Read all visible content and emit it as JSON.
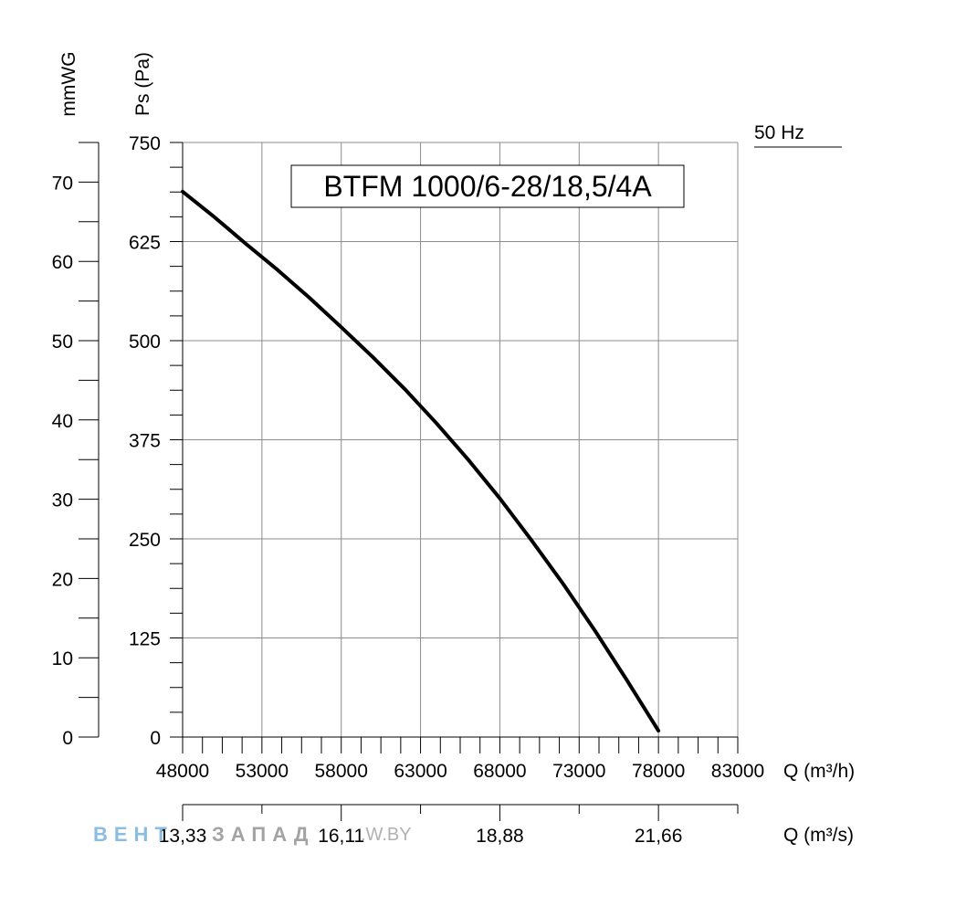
{
  "chart_data": {
    "type": "line",
    "title": "BTFM 1000/6-28/18,5/4A",
    "frequency_label": "50 Hz",
    "ylabel_left": "mmWG",
    "ylabel_right": "Ps (Pa)",
    "xlabel_primary": "Q (m³/h)",
    "xlabel_secondary": "Q (m³/s)",
    "xlim": [
      48000,
      83000
    ],
    "ylim": [
      0,
      750
    ],
    "ylim_mmwg": [
      0,
      75
    ],
    "x_ticks": [
      48000,
      53000,
      58000,
      63000,
      68000,
      73000,
      78000,
      83000
    ],
    "x_tick_labels": [
      "48000",
      "53000",
      "58000",
      "63000",
      "68000",
      "73000",
      "78000",
      "83000"
    ],
    "y_ticks": [
      0,
      125,
      250,
      375,
      500,
      625,
      750
    ],
    "y_tick_labels": [
      "0",
      "125",
      "250",
      "375",
      "500",
      "625",
      "750"
    ],
    "mmwg_ticks": [
      0,
      10,
      20,
      30,
      40,
      50,
      60,
      70
    ],
    "mmwg_tick_labels": [
      "0",
      "10",
      "20",
      "30",
      "40",
      "50",
      "60",
      "70"
    ],
    "secondary_ticks": [
      48000,
      58000,
      68000,
      78000
    ],
    "secondary_tick_labels": [
      "13,33",
      "16,11",
      "18,88",
      "21,66"
    ],
    "grid": true,
    "series": [
      {
        "x": [
          48000,
          50000,
          52000,
          54000,
          56000,
          58000,
          60000,
          62000,
          64000,
          66000,
          68000,
          70000,
          72000,
          74000,
          76000,
          78000,
          79000,
          80300
        ],
        "y": [
          688,
          656,
          622,
          589,
          554,
          517,
          479,
          439,
          396,
          350,
          301,
          248,
          193,
          134,
          72,
          8,
          -22,
          -2
        ]
      }
    ]
  },
  "watermark": {
    "brand_part1": "ВЕНТ",
    "brand_part2": "ЗАПАД",
    "url": ".W.BY",
    "brand_color": "#7fb6df",
    "muted_color": "#a9a9a9"
  }
}
